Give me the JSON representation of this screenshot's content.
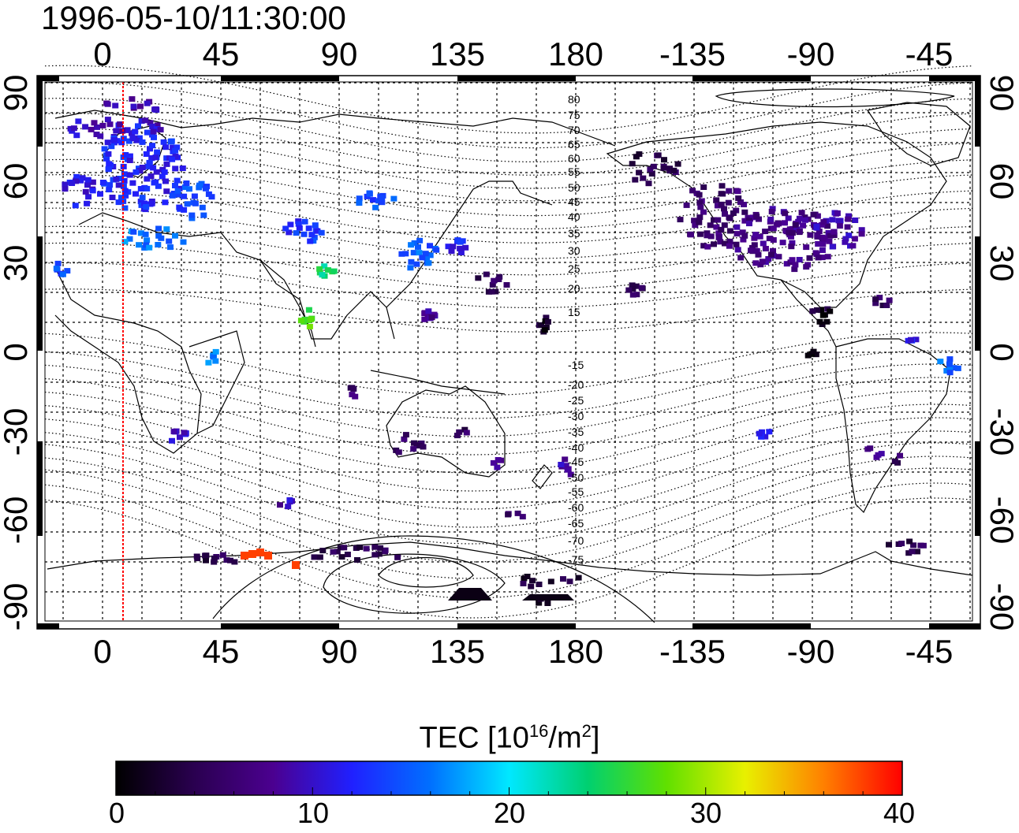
{
  "title": "1996-05-10/11:30:00",
  "axes": {
    "top_ticks": [
      "0",
      "45",
      "90",
      "135",
      "180",
      "-135",
      "-90",
      "-45"
    ],
    "bottom_ticks": [
      "0",
      "45",
      "90",
      "135",
      "180",
      "-135",
      "-90",
      "-45"
    ],
    "left_ticks": [
      "90",
      "60",
      "30",
      "0",
      "-30",
      "-60",
      "-90"
    ],
    "right_ticks": [
      "90",
      "60",
      "30",
      "0",
      "-30",
      "-60",
      "-90"
    ]
  },
  "magnetic_latitude_labels": {
    "north": [
      "80",
      "75",
      "70",
      "65",
      "60",
      "55",
      "50",
      "45",
      "40",
      "35",
      "30",
      "25",
      "20",
      "15"
    ],
    "south": [
      "-15",
      "-20",
      "-25",
      "-30",
      "-35",
      "-40",
      "-45",
      "-50",
      "-55",
      "-60",
      "-65",
      "-70",
      "-75"
    ]
  },
  "colorbar": {
    "title_prefix": "TEC  [10",
    "title_exp1": "16",
    "title_mid": "/m",
    "title_exp2": "2",
    "title_suffix": "]",
    "ticks": [
      "0",
      "10",
      "20",
      "30",
      "40"
    ],
    "min": 0,
    "max": 40
  },
  "terminator_line_color": "#ff0000",
  "colors": {
    "colormap": [
      "#000000",
      "#2a0050",
      "#4b0090",
      "#2020ff",
      "#0070ff",
      "#00e8ff",
      "#00d070",
      "#60e000",
      "#e8f000",
      "#ff8000",
      "#ff0000"
    ]
  }
}
